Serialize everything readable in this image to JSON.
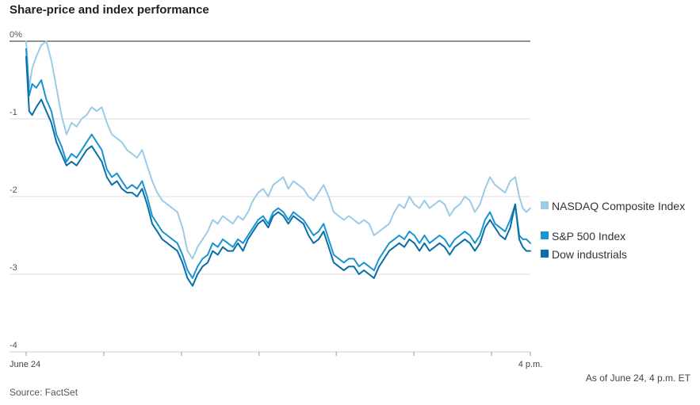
{
  "title": "Share-price and index performance",
  "note": "As of June 24, 4 p.m. ET",
  "source": "Source: FactSet",
  "chart_data": {
    "type": "line",
    "ylim": [
      -4,
      0
    ],
    "yticks": [
      {
        "value": 0,
        "label": "0%"
      },
      {
        "value": -1,
        "label": "-1"
      },
      {
        "value": -2,
        "label": "-2"
      },
      {
        "value": -3,
        "label": "-3"
      },
      {
        "value": -4,
        "label": "-4"
      }
    ],
    "xlim": [
      0,
      100
    ],
    "xticks": [
      {
        "value": 0,
        "label": "June 24"
      },
      {
        "value": 100,
        "label": "4 p.m."
      }
    ],
    "xminor": [
      0,
      15.4,
      30.8,
      46.2,
      61.5,
      76.9,
      92.3,
      100
    ],
    "grid": true,
    "legend_position": "right",
    "series": [
      {
        "name": "NASDAQ Composite Index",
        "color": "#9ccbe8",
        "x": [
          0,
          0.6,
          1.2,
          2,
          3,
          4,
          5,
          6,
          7,
          8,
          9,
          10,
          11,
          12,
          13,
          14,
          15,
          16,
          17,
          18,
          19,
          20,
          21,
          22,
          23,
          24,
          25,
          26,
          27,
          28,
          29,
          30,
          31,
          32,
          33,
          34,
          35,
          36,
          37,
          38,
          39,
          40,
          41,
          42,
          43,
          44,
          45,
          46,
          47,
          48,
          49,
          50,
          51,
          52,
          53,
          54,
          55,
          56,
          57,
          58,
          59,
          60,
          61,
          62,
          63,
          64,
          65,
          66,
          67,
          68,
          69,
          70,
          71,
          72,
          73,
          74,
          75,
          76,
          77,
          78,
          79,
          80,
          81,
          82,
          83,
          84,
          85,
          86,
          87,
          88,
          89,
          90,
          91,
          92,
          93,
          94,
          95,
          96,
          97,
          97.8,
          98.5,
          99.2,
          100
        ],
        "y": [
          0.0,
          -0.6,
          -0.35,
          -0.2,
          -0.05,
          0.0,
          -0.25,
          -0.6,
          -0.95,
          -1.2,
          -1.05,
          -1.1,
          -1.0,
          -0.95,
          -0.85,
          -0.9,
          -0.85,
          -1.05,
          -1.2,
          -1.25,
          -1.3,
          -1.4,
          -1.45,
          -1.5,
          -1.4,
          -1.6,
          -1.8,
          -1.95,
          -2.05,
          -2.1,
          -2.15,
          -2.2,
          -2.4,
          -2.7,
          -2.8,
          -2.65,
          -2.55,
          -2.45,
          -2.3,
          -2.35,
          -2.25,
          -2.3,
          -2.35,
          -2.25,
          -2.3,
          -2.2,
          -2.05,
          -1.95,
          -1.9,
          -2.0,
          -1.85,
          -1.8,
          -1.75,
          -1.9,
          -1.8,
          -1.85,
          -1.9,
          -2.0,
          -2.05,
          -1.95,
          -1.85,
          -2.0,
          -2.2,
          -2.25,
          -2.3,
          -2.25,
          -2.3,
          -2.35,
          -2.3,
          -2.35,
          -2.5,
          -2.45,
          -2.4,
          -2.35,
          -2.2,
          -2.1,
          -2.15,
          -2.0,
          -2.1,
          -2.15,
          -2.05,
          -2.15,
          -2.1,
          -2.05,
          -2.1,
          -2.25,
          -2.15,
          -2.1,
          -2.0,
          -2.05,
          -2.2,
          -2.1,
          -1.9,
          -1.75,
          -1.85,
          -1.9,
          -1.95,
          -1.8,
          -1.75,
          -2.0,
          -2.15,
          -2.2,
          -2.15
        ]
      },
      {
        "name": "S&P 500 Index",
        "color": "#1a93d1",
        "x": [
          0,
          0.6,
          1.2,
          2,
          3,
          4,
          5,
          6,
          7,
          8,
          9,
          10,
          11,
          12,
          13,
          14,
          15,
          16,
          17,
          18,
          19,
          20,
          21,
          22,
          23,
          24,
          25,
          26,
          27,
          28,
          29,
          30,
          31,
          32,
          33,
          34,
          35,
          36,
          37,
          38,
          39,
          40,
          41,
          42,
          43,
          44,
          45,
          46,
          47,
          48,
          49,
          50,
          51,
          52,
          53,
          54,
          55,
          56,
          57,
          58,
          59,
          60,
          61,
          62,
          63,
          64,
          65,
          66,
          67,
          68,
          69,
          70,
          71,
          72,
          73,
          74,
          75,
          76,
          77,
          78,
          79,
          80,
          81,
          82,
          83,
          84,
          85,
          86,
          87,
          88,
          89,
          90,
          91,
          92,
          93,
          94,
          95,
          96,
          97,
          97.8,
          98.5,
          99.2,
          100
        ],
        "y": [
          -0.1,
          -0.7,
          -0.55,
          -0.6,
          -0.5,
          -0.75,
          -0.9,
          -1.2,
          -1.35,
          -1.55,
          -1.45,
          -1.5,
          -1.4,
          -1.3,
          -1.2,
          -1.3,
          -1.4,
          -1.65,
          -1.75,
          -1.7,
          -1.8,
          -1.9,
          -1.85,
          -1.9,
          -1.8,
          -2.0,
          -2.25,
          -2.35,
          -2.45,
          -2.5,
          -2.55,
          -2.6,
          -2.75,
          -2.95,
          -3.05,
          -2.9,
          -2.8,
          -2.75,
          -2.6,
          -2.65,
          -2.55,
          -2.6,
          -2.65,
          -2.55,
          -2.6,
          -2.5,
          -2.4,
          -2.3,
          -2.25,
          -2.35,
          -2.2,
          -2.15,
          -2.2,
          -2.3,
          -2.2,
          -2.25,
          -2.3,
          -2.4,
          -2.5,
          -2.45,
          -2.35,
          -2.55,
          -2.75,
          -2.8,
          -2.85,
          -2.8,
          -2.8,
          -2.9,
          -2.85,
          -2.9,
          -2.95,
          -2.8,
          -2.7,
          -2.6,
          -2.55,
          -2.5,
          -2.55,
          -2.45,
          -2.5,
          -2.6,
          -2.5,
          -2.6,
          -2.55,
          -2.5,
          -2.55,
          -2.65,
          -2.55,
          -2.5,
          -2.45,
          -2.5,
          -2.6,
          -2.5,
          -2.3,
          -2.2,
          -2.35,
          -2.4,
          -2.45,
          -2.3,
          -2.1,
          -2.5,
          -2.55,
          -2.55,
          -2.6
        ]
      },
      {
        "name": "Dow industrials",
        "color": "#0a6ea8",
        "x": [
          0,
          0.6,
          1.2,
          2,
          3,
          4,
          5,
          6,
          7,
          8,
          9,
          10,
          11,
          12,
          13,
          14,
          15,
          16,
          17,
          18,
          19,
          20,
          21,
          22,
          23,
          24,
          25,
          26,
          27,
          28,
          29,
          30,
          31,
          32,
          33,
          34,
          35,
          36,
          37,
          38,
          39,
          40,
          41,
          42,
          43,
          44,
          45,
          46,
          47,
          48,
          49,
          50,
          51,
          52,
          53,
          54,
          55,
          56,
          57,
          58,
          59,
          60,
          61,
          62,
          63,
          64,
          65,
          66,
          67,
          68,
          69,
          70,
          71,
          72,
          73,
          74,
          75,
          76,
          77,
          78,
          79,
          80,
          81,
          82,
          83,
          84,
          85,
          86,
          87,
          88,
          89,
          90,
          91,
          92,
          93,
          94,
          95,
          96,
          97,
          97.8,
          98.5,
          99.2,
          100
        ],
        "y": [
          -0.2,
          -0.9,
          -0.95,
          -0.85,
          -0.75,
          -0.9,
          -1.05,
          -1.3,
          -1.45,
          -1.6,
          -1.55,
          -1.6,
          -1.5,
          -1.4,
          -1.35,
          -1.45,
          -1.55,
          -1.75,
          -1.85,
          -1.8,
          -1.9,
          -1.95,
          -1.95,
          -2.0,
          -1.9,
          -2.1,
          -2.35,
          -2.45,
          -2.55,
          -2.6,
          -2.65,
          -2.7,
          -2.85,
          -3.05,
          -3.15,
          -3.0,
          -2.9,
          -2.85,
          -2.7,
          -2.75,
          -2.65,
          -2.7,
          -2.7,
          -2.6,
          -2.7,
          -2.55,
          -2.45,
          -2.35,
          -2.3,
          -2.4,
          -2.25,
          -2.2,
          -2.25,
          -2.35,
          -2.25,
          -2.3,
          -2.35,
          -2.5,
          -2.6,
          -2.55,
          -2.45,
          -2.65,
          -2.85,
          -2.9,
          -2.95,
          -2.9,
          -2.9,
          -3.0,
          -2.95,
          -3.0,
          -3.05,
          -2.9,
          -2.8,
          -2.7,
          -2.65,
          -2.6,
          -2.65,
          -2.55,
          -2.6,
          -2.7,
          -2.6,
          -2.7,
          -2.65,
          -2.6,
          -2.65,
          -2.75,
          -2.65,
          -2.6,
          -2.55,
          -2.6,
          -2.7,
          -2.6,
          -2.4,
          -2.3,
          -2.4,
          -2.5,
          -2.55,
          -2.4,
          -2.1,
          -2.55,
          -2.65,
          -2.7,
          -2.7
        ]
      }
    ]
  }
}
